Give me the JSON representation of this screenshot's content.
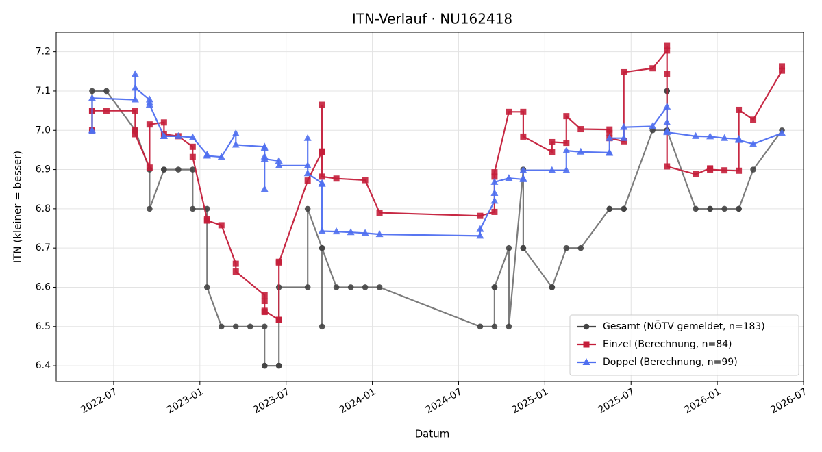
{
  "chart_data": {
    "type": "line",
    "title": "ITN-Verlauf · NU162418",
    "xlabel": "Datum",
    "ylabel": "ITN  (kleiner = besser)",
    "xlim": [
      "2022-03",
      "2026-07"
    ],
    "xticks": [
      "2022-07",
      "2023-01",
      "2023-07",
      "2024-01",
      "2024-07",
      "2025-01",
      "2025-07",
      "2026-01",
      "2026-07"
    ],
    "ylim": [
      6.36,
      7.25
    ],
    "yticks": [
      6.4,
      6.5,
      6.6,
      6.7,
      6.8,
      6.9,
      {
        "value": 7,
        "label": "7.0"
      },
      7.1,
      7.2
    ],
    "grid": true,
    "legend": "lower right",
    "series": [
      {
        "name": "Gesamt (NÖTV gemeldet, n=183)",
        "color": "#444444",
        "marker": "circle",
        "x": [
          "2022-05",
          "2022-05",
          "2022-05",
          "2022-06",
          "2022-08",
          "2022-08",
          "2022-09",
          "2022-09",
          "2022-10",
          "2022-10",
          "2022-11",
          "2022-12",
          "2022-12",
          "2023-01",
          "2023-01",
          "2023-02",
          "2023-03",
          "2023-04",
          "2023-05",
          "2023-05",
          "2023-05",
          "2023-06",
          "2023-06",
          "2023-06",
          "2023-08",
          "2023-08",
          "2023-09",
          "2023-09",
          "2023-09",
          "2023-10",
          "2023-11",
          "2023-12",
          "2024-01",
          "2024-08",
          "2024-09",
          "2024-09",
          "2024-09",
          "2024-10",
          "2024-10",
          "2024-11",
          "2024-11",
          "2024-11",
          "2025-01",
          "2025-01",
          "2025-02",
          "2025-03",
          "2025-05",
          "2025-05",
          "2025-06",
          "2025-06",
          "2025-08",
          "2025-09",
          "2025-09",
          "2025-09",
          "2025-09",
          "2025-11",
          "2025-12",
          "2025-12",
          "2026-01",
          "2026-02",
          "2026-02",
          "2026-03",
          "2026-05"
        ],
        "values": [
          7.0,
          7.0,
          7.1,
          7.1,
          7.0,
          7.0,
          6.9,
          6.8,
          6.9,
          6.9,
          6.9,
          6.9,
          6.8,
          6.8,
          6.6,
          6.5,
          6.5,
          6.5,
          6.5,
          6.4,
          6.4,
          6.4,
          6.4,
          6.6,
          6.6,
          6.8,
          6.7,
          6.5,
          6.7,
          6.6,
          6.6,
          6.6,
          6.6,
          6.5,
          6.5,
          6.6,
          6.6,
          6.7,
          6.5,
          6.9,
          6.7,
          6.7,
          6.6,
          6.6,
          6.7,
          6.7,
          6.8,
          6.8,
          6.8,
          6.8,
          7.0,
          7.0,
          7.1,
          7.1,
          7.0,
          6.8,
          6.8,
          6.8,
          6.8,
          6.8,
          6.8,
          6.9,
          7.0
        ]
      },
      {
        "name": "Einzel (Berechnung, n=84)",
        "color": "#c41e3a",
        "marker": "square",
        "x": [
          "2022-05",
          "2022-05",
          "2022-05",
          "2022-06",
          "2022-08",
          "2022-08",
          "2022-08",
          "2022-09",
          "2022-09",
          "2022-10",
          "2022-10",
          "2022-11",
          "2022-12",
          "2022-12",
          "2023-01",
          "2023-01",
          "2023-02",
          "2023-03",
          "2023-03",
          "2023-05",
          "2023-05",
          "2023-05",
          "2023-05",
          "2023-06",
          "2023-06",
          "2023-06",
          "2023-06",
          "2023-08",
          "2023-09",
          "2023-09",
          "2023-09",
          "2023-09",
          "2023-10",
          "2023-12",
          "2024-01",
          "2024-08",
          "2024-09",
          "2024-09",
          "2024-09",
          "2024-10",
          "2024-11",
          "2024-11",
          "2025-01",
          "2025-01",
          "2025-02",
          "2025-02",
          "2025-03",
          "2025-05",
          "2025-05",
          "2025-05",
          "2025-06",
          "2025-06",
          "2025-08",
          "2025-09",
          "2025-09",
          "2025-09",
          "2025-09",
          "2025-11",
          "2025-12",
          "2025-12",
          "2026-01",
          "2026-02",
          "2026-02",
          "2026-03",
          "2026-05",
          "2026-05"
        ],
        "values": [
          7.0,
          7.05,
          7.05,
          7.05,
          7.05,
          7.0,
          6.99,
          6.905,
          7.015,
          7.02,
          6.99,
          6.985,
          6.958,
          6.932,
          6.773,
          6.77,
          6.758,
          6.66,
          6.64,
          6.58,
          6.565,
          6.537,
          6.54,
          6.517,
          6.517,
          6.665,
          6.663,
          6.872,
          6.946,
          6.945,
          7.065,
          6.882,
          6.877,
          6.873,
          6.79,
          6.782,
          6.792,
          6.882,
          6.893,
          7.047,
          7.047,
          6.984,
          6.945,
          6.97,
          6.968,
          7.036,
          7.003,
          7.002,
          6.993,
          6.98,
          6.972,
          7.148,
          7.158,
          7.203,
          7.215,
          7.143,
          6.908,
          6.888,
          6.903,
          6.9,
          6.898,
          6.897,
          7.052,
          7.027,
          7.152,
          7.163
        ]
      },
      {
        "name": "Doppel (Berechnung, n=99)",
        "color": "#4f6ff0",
        "marker": "triangle",
        "x": [
          "2022-05",
          "2022-05",
          "2022-05",
          "2022-08",
          "2022-08",
          "2022-08",
          "2022-09",
          "2022-09",
          "2022-09",
          "2022-10",
          "2022-10",
          "2022-11",
          "2022-12",
          "2023-01",
          "2023-01",
          "2023-02",
          "2023-03",
          "2023-03",
          "2023-05",
          "2023-05",
          "2023-05",
          "2023-05",
          "2023-05",
          "2023-06",
          "2023-06",
          "2023-08",
          "2023-08",
          "2023-08",
          "2023-09",
          "2023-09",
          "2023-09",
          "2023-10",
          "2023-11",
          "2023-12",
          "2024-01",
          "2024-08",
          "2024-08",
          "2024-09",
          "2024-09",
          "2024-09",
          "2024-10",
          "2024-11",
          "2024-11",
          "2024-11",
          "2025-01",
          "2025-02",
          "2025-02",
          "2025-03",
          "2025-05",
          "2025-05",
          "2025-05",
          "2025-06",
          "2025-06",
          "2025-08",
          "2025-09",
          "2025-09",
          "2025-09",
          "2025-09",
          "2025-11",
          "2025-12",
          "2026-01",
          "2026-02",
          "2026-02",
          "2026-03",
          "2026-05"
        ],
        "values": [
          7.0,
          6.997,
          7.082,
          7.078,
          7.143,
          7.108,
          7.078,
          7.07,
          7.065,
          6.985,
          6.985,
          6.985,
          6.982,
          6.938,
          6.935,
          6.932,
          6.992,
          6.963,
          6.958,
          6.955,
          6.85,
          6.933,
          6.927,
          6.922,
          6.91,
          6.91,
          6.98,
          6.89,
          6.865,
          6.863,
          6.743,
          6.742,
          6.74,
          6.738,
          6.735,
          6.731,
          6.748,
          6.82,
          6.84,
          6.868,
          6.878,
          6.875,
          6.877,
          6.898,
          6.898,
          6.898,
          6.948,
          6.945,
          6.943,
          6.942,
          6.98,
          6.98,
          7.008,
          7.01,
          7.06,
          7.02,
          6.998,
          6.995,
          6.985,
          6.984,
          6.98,
          6.978,
          6.975,
          6.965,
          6.993
        ]
      }
    ]
  }
}
